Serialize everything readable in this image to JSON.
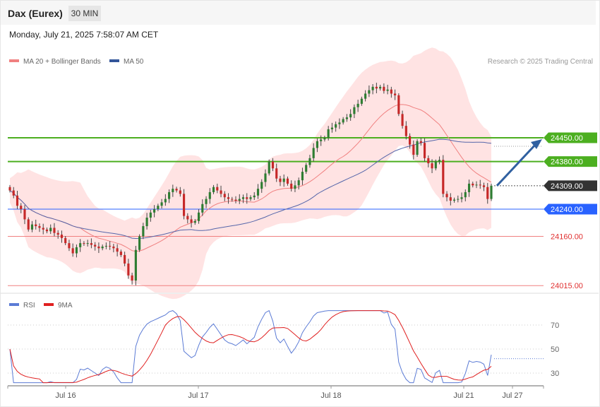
{
  "header": {
    "instrument": "Dax (Eurex)",
    "timeframe": "30 MIN"
  },
  "datetime": "Monday, July 21, 2025 7:58:07 AM CET",
  "legend": {
    "ma20_label": "MA 20 + Bollinger Bands",
    "ma50_label": "MA 50",
    "credit": "Research © 2025 Trading Central",
    "rsi_label": "RSI",
    "rsi_ma_label": "9MA"
  },
  "colors": {
    "up": "#2e7d32",
    "down": "#c62828",
    "ma20": "#f08080",
    "ma50": "#5566aa",
    "band": "#ffdede",
    "green_level": "#4caf20",
    "blue_level": "#2962ff",
    "red_level": "#f08080",
    "arrow": "#3060a0"
  },
  "chart_data": [
    {
      "type": "candlestick",
      "title": "Dax (Eurex) 30 MIN",
      "x_tick_labels": [
        "Jul 16",
        "Jul 17",
        "Jul 18",
        "Jul 21",
        "Jul 27"
      ],
      "y_range": [
        23990,
        24520
      ],
      "last_price": 24309,
      "levels": [
        {
          "value": 24450,
          "label": "24450.00",
          "kind": "resistance"
        },
        {
          "value": 24380,
          "label": "24380.00",
          "kind": "resistance"
        },
        {
          "value": 24309,
          "label": "24309.00",
          "kind": "last"
        },
        {
          "value": 24240,
          "label": "24240.00",
          "kind": "pivot"
        },
        {
          "value": 24160,
          "label": "24160.00",
          "kind": "support"
        },
        {
          "value": 24015,
          "label": "24015.00",
          "kind": "support"
        }
      ],
      "forecast_arrow": {
        "from": 24309,
        "to": 24450
      },
      "close": [
        24295,
        24280,
        24250,
        24240,
        24210,
        24180,
        24195,
        24190,
        24185,
        24180,
        24175,
        24185,
        24170,
        24165,
        24155,
        24140,
        24125,
        24110,
        24128,
        24140,
        24138,
        24140,
        24135,
        24130,
        24125,
        24130,
        24132,
        24130,
        24125,
        24115,
        24105,
        24080,
        24045,
        24030,
        24120,
        24160,
        24190,
        24215,
        24230,
        24240,
        24250,
        24260,
        24270,
        24290,
        24300,
        24295,
        24285,
        24220,
        24210,
        24200,
        24205,
        24230,
        24255,
        24270,
        24290,
        24305,
        24295,
        24285,
        24275,
        24270,
        24268,
        24265,
        24270,
        24275,
        24270,
        24275,
        24280,
        24300,
        24320,
        24345,
        24380,
        24360,
        24330,
        24320,
        24330,
        24315,
        24300,
        24310,
        24325,
        24350,
        24370,
        24390,
        24420,
        24440,
        24445,
        24450,
        24475,
        24480,
        24490,
        24495,
        24505,
        24510,
        24520,
        24540,
        24550,
        24565,
        24580,
        24590,
        24600,
        24595,
        24600,
        24588,
        24592,
        24580,
        24575,
        24520,
        24485,
        24455,
        24430,
        24400,
        24440,
        24435,
        24390,
        24375,
        24360,
        24380,
        24385,
        24285,
        24275,
        24265,
        24268,
        24270,
        24275,
        24290,
        24315,
        24310,
        24312,
        24310,
        24305,
        24270,
        24309
      ],
      "rsi": {
        "ticks": [
          70,
          50,
          30
        ],
        "last": 42,
        "ma_last": 41
      }
    }
  ]
}
